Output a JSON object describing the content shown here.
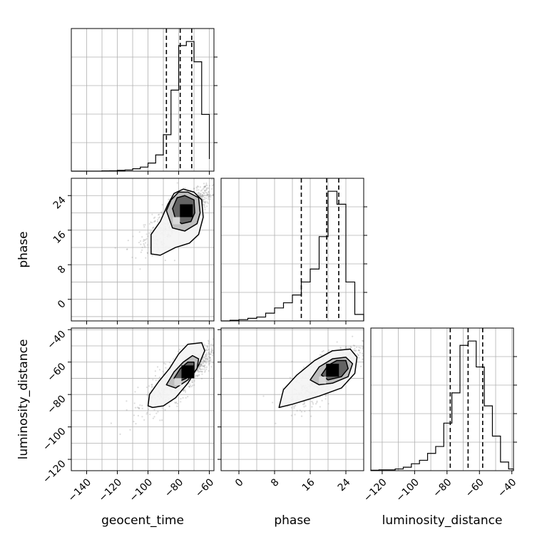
{
  "chart_data": [
    {
      "type": "histogram",
      "parameter": "geocent_time",
      "xlim": [
        -150,
        -57
      ],
      "xticks": [
        -140,
        -120,
        -100,
        -80,
        -60
      ],
      "bins": [
        -150,
        -145,
        -140,
        -135,
        -130,
        -125,
        -120,
        -115,
        -110,
        -105,
        -100,
        -95,
        -90,
        -85,
        -80,
        -75,
        -70,
        -65,
        -60
      ],
      "counts": [
        0,
        0,
        0,
        0,
        0.3,
        0.5,
        1,
        1.5,
        3,
        5,
        10,
        20,
        45,
        100,
        155,
        160,
        135,
        70,
        15
      ],
      "quantiles": [
        -88,
        -79,
        -71.5
      ]
    },
    {
      "type": "histogram",
      "parameter": "phase",
      "xlim": [
        -4,
        28
      ],
      "xticks": [
        0,
        8,
        16,
        24
      ],
      "bins": [
        -4,
        -2,
        0,
        2,
        4,
        6,
        8,
        10,
        12,
        14,
        16,
        18,
        20,
        22,
        24,
        26,
        28
      ],
      "counts": [
        0,
        0.5,
        1,
        2,
        3,
        6,
        10,
        14,
        20,
        30,
        40,
        65,
        100,
        90,
        30,
        5
      ],
      "quantiles": [
        14,
        19.7,
        22.4
      ]
    },
    {
      "type": "histogram",
      "parameter": "luminosity_distance",
      "xlim": [
        -127,
        -39
      ],
      "xticks": [
        -120,
        -100,
        -80,
        -60,
        -40
      ],
      "bins": [
        -127,
        -122,
        -117,
        -112,
        -107,
        -102,
        -97,
        -92,
        -87,
        -82,
        -77,
        -72,
        -67,
        -62,
        -57,
        -52,
        -47,
        -42,
        -39
      ],
      "counts": [
        0.5,
        1,
        1,
        2,
        4,
        8,
        12,
        20,
        28,
        55,
        90,
        145,
        150,
        120,
        75,
        40,
        10,
        2
      ],
      "quantiles": [
        -78,
        -67,
        -58
      ]
    },
    {
      "type": "contour",
      "x_parameter": "geocent_time",
      "y_parameter": "phase",
      "xlim": [
        -150,
        -57
      ],
      "ylim": [
        -5,
        28
      ],
      "yticks": [
        0,
        8,
        16,
        24
      ],
      "mean": [
        -75,
        20.5
      ],
      "levels": [
        [
          [
            -98,
            10.5
          ],
          [
            -98,
            15
          ],
          [
            -92,
            18
          ],
          [
            -87,
            22
          ],
          [
            -83,
            24.5
          ],
          [
            -77,
            25.5
          ],
          [
            -70,
            24.8
          ],
          [
            -65,
            23
          ],
          [
            -64,
            19
          ],
          [
            -67,
            15
          ],
          [
            -73,
            13
          ],
          [
            -82,
            12
          ],
          [
            -92,
            10.2
          ]
        ],
        [
          [
            -88,
            20.5
          ],
          [
            -85,
            23
          ],
          [
            -80,
            24.8
          ],
          [
            -74,
            24.8
          ],
          [
            -67,
            23.5
          ],
          [
            -66,
            20
          ],
          [
            -68,
            17.5
          ],
          [
            -76,
            15.8
          ],
          [
            -84,
            16.5
          ]
        ],
        [
          [
            -84,
            21
          ],
          [
            -81,
            23.5
          ],
          [
            -76,
            24
          ],
          [
            -70,
            23
          ],
          [
            -69.5,
            20
          ],
          [
            -72,
            18
          ],
          [
            -78,
            17.5
          ],
          [
            -82,
            18.5
          ]
        ]
      ]
    },
    {
      "type": "contour",
      "x_parameter": "geocent_time",
      "y_parameter": "luminosity_distance",
      "xlim": [
        -150,
        -57
      ],
      "ylim": [
        -127,
        -39
      ],
      "yticks": [
        -120,
        -100,
        -80,
        -60,
        -40
      ],
      "mean": [
        -74,
        -66
      ],
      "levels": [
        [
          [
            -100,
            -87
          ],
          [
            -99,
            -80
          ],
          [
            -93,
            -72
          ],
          [
            -86,
            -64
          ],
          [
            -80,
            -55
          ],
          [
            -74,
            -49
          ],
          [
            -65,
            -48
          ],
          [
            -63,
            -53
          ],
          [
            -67,
            -62
          ],
          [
            -74,
            -73
          ],
          [
            -82,
            -82
          ],
          [
            -90,
            -87
          ],
          [
            -97,
            -88
          ]
        ],
        [
          [
            -88,
            -74
          ],
          [
            -83,
            -66
          ],
          [
            -77,
            -60
          ],
          [
            -71,
            -56
          ],
          [
            -67,
            -58
          ],
          [
            -68,
            -64
          ],
          [
            -74,
            -71
          ],
          [
            -82,
            -76
          ]
        ],
        [
          [
            -83,
            -70
          ],
          [
            -79,
            -64
          ],
          [
            -74,
            -60
          ],
          [
            -70,
            -60
          ],
          [
            -70,
            -65
          ],
          [
            -75,
            -70
          ],
          [
            -80,
            -72
          ]
        ]
      ]
    },
    {
      "type": "contour",
      "x_parameter": "phase",
      "y_parameter": "luminosity_distance",
      "xlim": [
        -4,
        28
      ],
      "ylim": [
        -127,
        -39
      ],
      "mean": [
        21,
        -65
      ],
      "levels": [
        [
          [
            9,
            -88
          ],
          [
            10,
            -77
          ],
          [
            13,
            -68
          ],
          [
            17,
            -59
          ],
          [
            21,
            -53
          ],
          [
            25,
            -52
          ],
          [
            26.5,
            -57
          ],
          [
            26,
            -67
          ],
          [
            23,
            -76
          ],
          [
            18,
            -81
          ],
          [
            12,
            -86
          ]
        ],
        [
          [
            16,
            -71
          ],
          [
            18,
            -63
          ],
          [
            21,
            -58
          ],
          [
            24,
            -57
          ],
          [
            25.5,
            -61
          ],
          [
            24.5,
            -69
          ],
          [
            21,
            -73
          ],
          [
            18,
            -74
          ]
        ],
        [
          [
            18.5,
            -68
          ],
          [
            20,
            -62
          ],
          [
            22,
            -59
          ],
          [
            24,
            -59
          ],
          [
            24.5,
            -64
          ],
          [
            23,
            -69
          ],
          [
            20,
            -71
          ]
        ]
      ]
    }
  ]
}
